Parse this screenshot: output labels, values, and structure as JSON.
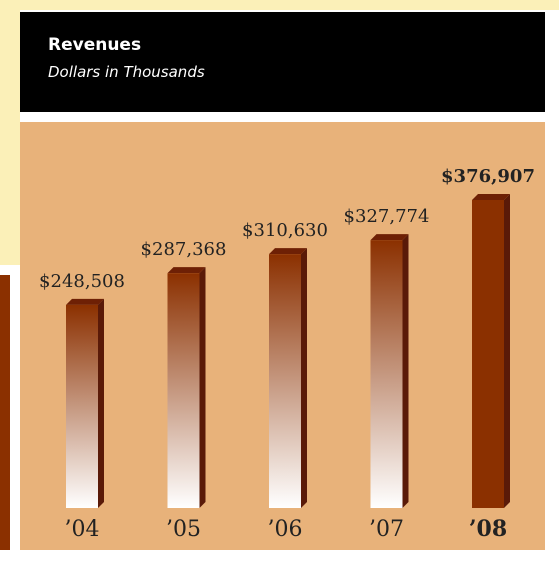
{
  "chart_data": {
    "type": "bar",
    "title": "Revenues",
    "subtitle": "Dollars in Thousands",
    "categories": [
      "’04",
      "’05",
      "’06",
      "’07",
      "’08"
    ],
    "values": [
      248508,
      287368,
      310630,
      327774,
      376907
    ],
    "value_labels": [
      "$248,508",
      "$287,368",
      "$310,630",
      "$327,774",
      "$376,907"
    ],
    "color": "#8b3000",
    "highlight_index": 4
  }
}
